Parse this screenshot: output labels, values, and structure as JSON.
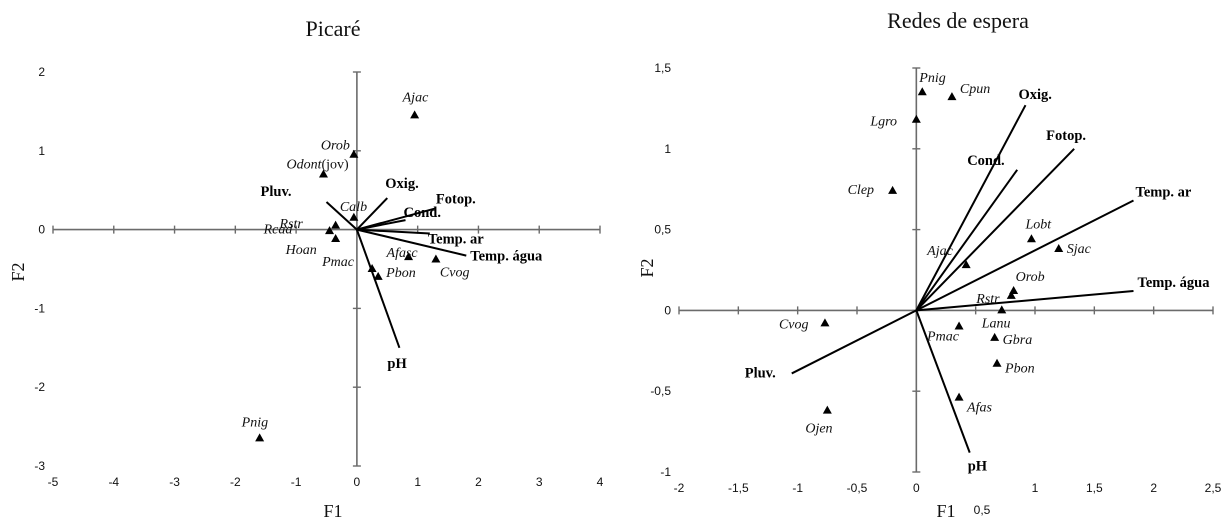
{
  "chart_data": [
    {
      "type": "scatter",
      "title": "Picaré",
      "xlabel": "F1",
      "ylabel": "F2",
      "xlim": [
        -5,
        4
      ],
      "ylim": [
        -3,
        2
      ],
      "x_ticks": [
        -5,
        -4,
        -3,
        -2,
        -1,
        0,
        1,
        2,
        3,
        4
      ],
      "y_ticks": [
        2,
        1,
        0,
        -1,
        -2,
        -3
      ],
      "x_tick_labels": [
        "-5",
        "-4",
        "-3",
        "-2",
        "-1",
        "0",
        "1",
        "2",
        "3",
        "4"
      ],
      "y_tick_labels": [
        "2",
        "1",
        "0",
        "-1",
        "-2",
        "-3"
      ],
      "points": [
        {
          "label": "Ajac",
          "x": 0.95,
          "y": 1.45
        },
        {
          "label": "Orob",
          "x": -0.05,
          "y": 0.95
        },
        {
          "label": "Odont",
          "suffix": "(jov)",
          "x": -0.55,
          "y": 0.7
        },
        {
          "label": "Calb",
          "x": -0.05,
          "y": 0.15
        },
        {
          "label": "Rcad",
          "x": -0.35,
          "y": 0.05
        },
        {
          "label": "Rstr",
          "x": -0.45,
          "y": -0.02
        },
        {
          "label": "Hoan",
          "x": -0.35,
          "y": -0.12
        },
        {
          "label": "Afasc",
          "x": 0.85,
          "y": -0.35
        },
        {
          "label": "Pmac",
          "x": 0.25,
          "y": -0.5
        },
        {
          "label": "Pbon",
          "x": 0.35,
          "y": -0.6
        },
        {
          "label": "Cvog",
          "x": 1.3,
          "y": -0.38
        },
        {
          "label": "Pnig",
          "x": -1.6,
          "y": -2.65
        }
      ],
      "vectors": [
        {
          "label": "Pluv.",
          "x": -0.5,
          "y": 0.35
        },
        {
          "label": "Oxig.",
          "x": 0.5,
          "y": 0.4
        },
        {
          "label": "Fotop.",
          "x": 1.3,
          "y": 0.27
        },
        {
          "label": "Cond.",
          "x": 0.8,
          "y": 0.12
        },
        {
          "label": "Temp. ar",
          "x": 1.2,
          "y": -0.05
        },
        {
          "label": "Temp. água",
          "x": 1.8,
          "y": -0.33
        },
        {
          "label": "pH",
          "x": 0.7,
          "y": -1.5
        }
      ]
    },
    {
      "type": "scatter",
      "title": "Redes de espera",
      "xlabel": "F1",
      "xlabel_extra": "0,5",
      "ylabel": "F2",
      "xlim": [
        -2,
        2.5
      ],
      "ylim": [
        -1,
        1.5
      ],
      "x_ticks": [
        -2,
        -1.5,
        -1,
        -0.5,
        0,
        0.5,
        1,
        1.5,
        2,
        2.5
      ],
      "y_ticks": [
        1.5,
        1,
        0.5,
        0,
        -0.5,
        -1
      ],
      "x_tick_labels": [
        "-2",
        "-1,5",
        "-1",
        "-0,5",
        "0",
        "",
        "1",
        "1,5",
        "2",
        "2,5"
      ],
      "y_tick_labels": [
        "1,5",
        "1",
        "0,5",
        "0",
        "-0,5",
        "-1"
      ],
      "points": [
        {
          "label": "Pnig",
          "x": 0.05,
          "y": 1.35
        },
        {
          "label": "Cpun",
          "x": 0.3,
          "y": 1.32
        },
        {
          "label": "Lgro",
          "x": 0,
          "y": 1.18
        },
        {
          "label": "Clep",
          "x": -0.2,
          "y": 0.74
        },
        {
          "label": "Lobt",
          "x": 0.97,
          "y": 0.44
        },
        {
          "label": "Sjac",
          "x": 1.2,
          "y": 0.38
        },
        {
          "label": "Ajac",
          "x": 0.42,
          "y": 0.28
        },
        {
          "label": "Orob",
          "x": 0.82,
          "y": 0.12
        },
        {
          "label": "Rstr",
          "x": 0.8,
          "y": 0.09
        },
        {
          "label": "Lanu",
          "x": 0.72,
          "y": 0
        },
        {
          "label": "Cvog",
          "x": -0.77,
          "y": -0.08
        },
        {
          "label": "Pmac",
          "x": 0.36,
          "y": -0.1
        },
        {
          "label": "Gbra",
          "x": 0.66,
          "y": -0.17
        },
        {
          "label": "Pbon",
          "x": 0.68,
          "y": -0.33
        },
        {
          "label": "Afas",
          "x": 0.36,
          "y": -0.54
        },
        {
          "label": "Ojen",
          "x": -0.75,
          "y": -0.62
        }
      ],
      "vectors": [
        {
          "label": "Oxig.",
          "x": 0.92,
          "y": 1.27
        },
        {
          "label": "Fotop.",
          "x": 1.33,
          "y": 1.0
        },
        {
          "label": "Cond.",
          "x": 0.85,
          "y": 0.87
        },
        {
          "label": "Temp. ar",
          "x": 1.83,
          "y": 0.68
        },
        {
          "label": "Temp. água",
          "x": 1.83,
          "y": 0.12
        },
        {
          "label": "Pluv.",
          "x": -1.05,
          "y": -0.39
        },
        {
          "label": "pH",
          "x": 0.45,
          "y": -0.88
        }
      ]
    }
  ]
}
